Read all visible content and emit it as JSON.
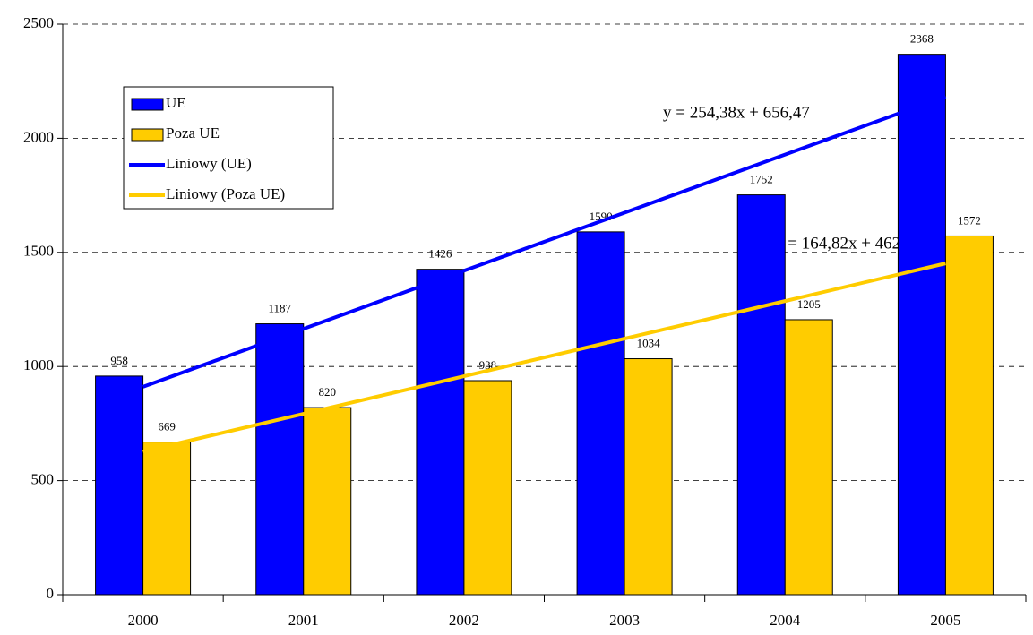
{
  "chart_data": {
    "type": "bar",
    "categories": [
      "2000",
      "2001",
      "2002",
      "2003",
      "2004",
      "2005"
    ],
    "series": [
      {
        "name": "UE",
        "type": "bar",
        "color": "#0000ff",
        "values": [
          958,
          1187,
          1426,
          1590,
          1752,
          2368
        ]
      },
      {
        "name": "Poza UE",
        "type": "bar",
        "color": "#ffcc00",
        "values": [
          669,
          820,
          938,
          1034,
          1205,
          1572
        ]
      },
      {
        "name": "Liniowy (UE)",
        "type": "line",
        "color": "#0000ff",
        "values": [
          910.85,
          1165.23,
          1419.61,
          1673.99,
          1928.37,
          2182.75
        ]
      },
      {
        "name": "Liniowy (Poza UE)",
        "type": "line",
        "color": "#ffcc00",
        "values": [
          627.54,
          792.36,
          957.18,
          1122.0,
          1286.82,
          1451.64
        ]
      }
    ],
    "annotations": [
      "y = 254,38x + 656,47",
      "y = 164,82x + 462,72"
    ],
    "ylim": [
      0,
      2500
    ],
    "yticks": [
      0,
      500,
      1000,
      1500,
      2000,
      2500
    ],
    "grid": true,
    "legend": "top-left"
  }
}
